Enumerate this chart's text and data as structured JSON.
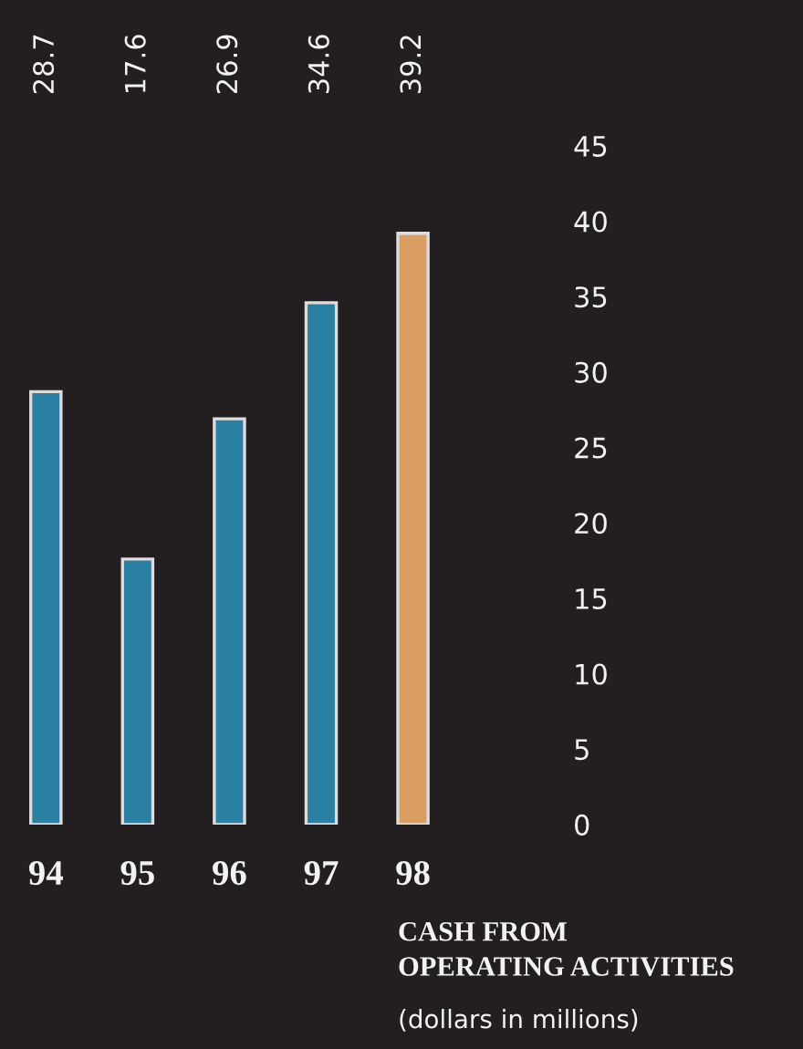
{
  "chart_data": {
    "type": "bar",
    "title": "CASH FROM\nOPERATING ACTIVITIES",
    "subtitle": "(dollars in millions)",
    "categories": [
      "94",
      "95",
      "96",
      "97",
      "98"
    ],
    "values": [
      28.7,
      17.6,
      26.9,
      34.6,
      39.2
    ],
    "colors": [
      "#2a80a2",
      "#2a80a2",
      "#2a80a2",
      "#2a80a2",
      "#d89e62"
    ],
    "data_labels": true,
    "ylim": [
      0,
      45
    ],
    "yticks": [
      0,
      5,
      10,
      15,
      20,
      25,
      30,
      35,
      40,
      45
    ],
    "grid": false,
    "legend": false
  }
}
